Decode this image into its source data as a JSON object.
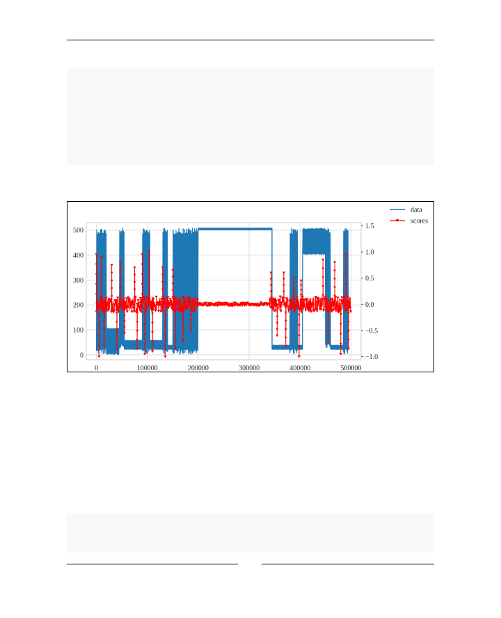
{
  "chart_data": {
    "type": "line",
    "title": "",
    "xlabel": "",
    "ylabel": "",
    "y2label": "",
    "xlim": [
      -20000,
      520000
    ],
    "ylim": [
      -20,
      530
    ],
    "y2lim": [
      -1.06,
      1.56
    ],
    "x_ticks": [
      0,
      100000,
      200000,
      300000,
      400000,
      500000
    ],
    "x_tick_labels": [
      "0",
      "100000",
      "200000",
      "300000",
      "400000",
      "500000"
    ],
    "y_ticks": [
      0,
      100,
      200,
      300,
      400,
      500
    ],
    "y_tick_labels": [
      "0",
      "100",
      "200",
      "300",
      "400",
      "500"
    ],
    "y2_ticks": [
      -1.0,
      -0.5,
      0.0,
      0.5,
      1.0,
      1.5
    ],
    "y2_tick_labels": [
      "−1.0",
      "−0.5",
      "0.0",
      "0.5",
      "1.0",
      "1.5"
    ],
    "grid": true,
    "legend_position": "outside-top-right",
    "series": [
      {
        "name": "data",
        "axis": "left",
        "color": "#1f77b4",
        "marker": "none",
        "regimes": [
          {
            "x": [
              0,
              20000
            ],
            "low": 0,
            "high": 510
          },
          {
            "x": [
              20000,
              45000
            ],
            "low": 0,
            "high": 110
          },
          {
            "x": [
              45000,
              55000
            ],
            "low": 20,
            "high": 510
          },
          {
            "x": [
              55000,
              90000
            ],
            "low": 20,
            "high": 60
          },
          {
            "x": [
              90000,
              105000
            ],
            "low": 0,
            "high": 510
          },
          {
            "x": [
              105000,
              130000
            ],
            "low": 20,
            "high": 60
          },
          {
            "x": [
              130000,
              140000
            ],
            "low": 0,
            "high": 510
          },
          {
            "x": [
              140000,
              150000
            ],
            "low": 20,
            "high": 40
          },
          {
            "x": [
              150000,
              200000
            ],
            "low": 0,
            "high": 510
          },
          {
            "x": [
              200000,
              345000
            ],
            "low": 500,
            "high": 510
          },
          {
            "x": [
              345000,
              380000
            ],
            "low": 20,
            "high": 40
          },
          {
            "x": [
              380000,
              395000
            ],
            "low": 0,
            "high": 510
          },
          {
            "x": [
              395000,
              405000
            ],
            "low": 20,
            "high": 40
          },
          {
            "x": [
              405000,
              450000
            ],
            "low": 400,
            "high": 510
          },
          {
            "x": [
              450000,
              460000
            ],
            "low": 20,
            "high": 510
          },
          {
            "x": [
              460000,
              485000
            ],
            "low": 20,
            "high": 40
          },
          {
            "x": [
              485000,
              495000
            ],
            "low": 0,
            "high": 510
          }
        ]
      },
      {
        "name": "scores",
        "axis": "right",
        "color": "#ff0000",
        "marker": "triangle-down",
        "spikes": [
          {
            "x": 0,
            "y": 0.95
          },
          {
            "x": 5000,
            "y": -1.0
          },
          {
            "x": 10000,
            "y": 0.9
          },
          {
            "x": 15000,
            "y": -0.8
          },
          {
            "x": 30000,
            "y": 0.75
          },
          {
            "x": 40000,
            "y": -0.85
          },
          {
            "x": 47000,
            "y": 0.8
          },
          {
            "x": 55000,
            "y": -0.55
          },
          {
            "x": 75000,
            "y": 0.7
          },
          {
            "x": 80000,
            "y": -0.85
          },
          {
            "x": 90000,
            "y": 0.95
          },
          {
            "x": 95000,
            "y": -0.95
          },
          {
            "x": 103000,
            "y": 1.0
          },
          {
            "x": 110000,
            "y": -0.9
          },
          {
            "x": 130000,
            "y": 0.7
          },
          {
            "x": 135000,
            "y": -1.0
          },
          {
            "x": 150000,
            "y": 0.65
          },
          {
            "x": 155000,
            "y": -0.85
          },
          {
            "x": 170000,
            "y": -0.7
          },
          {
            "x": 185000,
            "y": -0.5
          },
          {
            "x": 343000,
            "y": 0.6
          },
          {
            "x": 355000,
            "y": -0.6
          },
          {
            "x": 368000,
            "y": 0.6
          },
          {
            "x": 372000,
            "y": -0.8
          },
          {
            "x": 388000,
            "y": 0.5
          },
          {
            "x": 398000,
            "y": -1.0
          },
          {
            "x": 402000,
            "y": 0.45
          },
          {
            "x": 445000,
            "y": 0.85
          },
          {
            "x": 455000,
            "y": -0.75
          },
          {
            "x": 468000,
            "y": 0.8
          },
          {
            "x": 480000,
            "y": -0.95
          },
          {
            "x": 490000,
            "y": 0.95
          },
          {
            "x": 495000,
            "y": -0.85
          }
        ],
        "band_regions": [
          {
            "x": [
              0,
              200000
            ],
            "amplitude": 0.15
          },
          {
            "x": [
              200000,
              340000
            ],
            "amplitude": 0.03
          },
          {
            "x": [
              340000,
              500000
            ],
            "amplitude": 0.15
          }
        ]
      }
    ]
  }
}
